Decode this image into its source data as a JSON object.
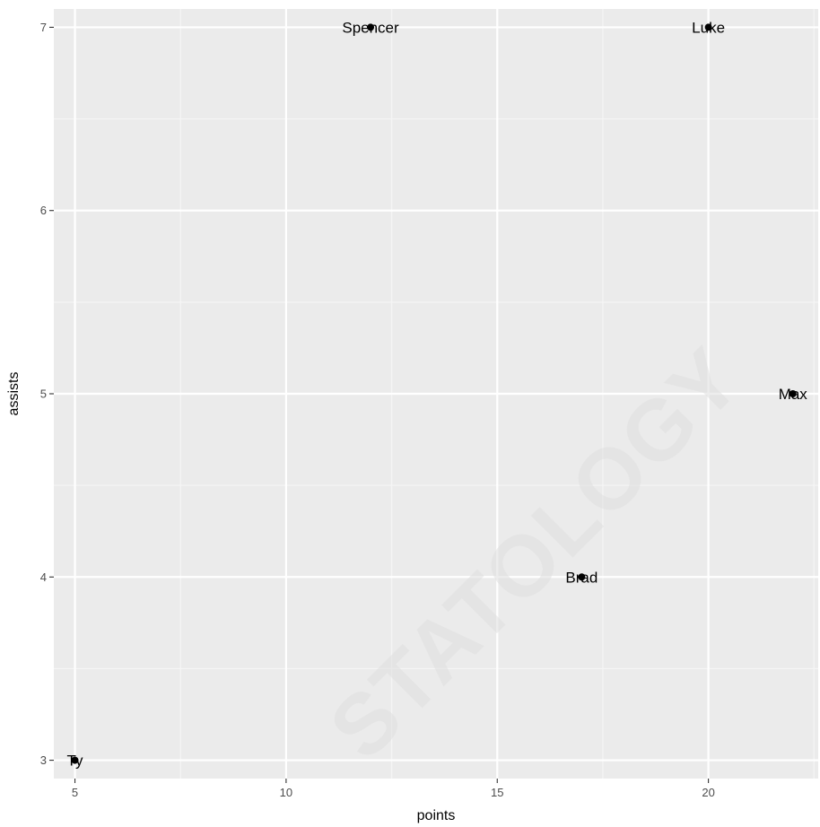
{
  "chart_data": {
    "type": "scatter",
    "xlabel": "points",
    "ylabel": "assists",
    "xlim": [
      4.5,
      22.6
    ],
    "ylim": [
      2.9,
      7.1
    ],
    "x_ticks": [
      5,
      10,
      15,
      20
    ],
    "y_ticks": [
      3,
      4,
      5,
      6,
      7
    ],
    "grid": true,
    "legend": "none",
    "points": [
      {
        "label": "Ty",
        "x": 5,
        "y": 3
      },
      {
        "label": "Spencer",
        "x": 12,
        "y": 7
      },
      {
        "label": "Luke",
        "x": 20,
        "y": 7
      },
      {
        "label": "Max",
        "x": 22,
        "y": 5
      },
      {
        "label": "Brad",
        "x": 17,
        "y": 4
      }
    ]
  },
  "watermark": "STATOLOGY",
  "colors": {
    "panel_background": "#ebebeb",
    "grid_major": "#ffffff",
    "grid_minor": "#f5f5f5",
    "point": "#000000"
  }
}
